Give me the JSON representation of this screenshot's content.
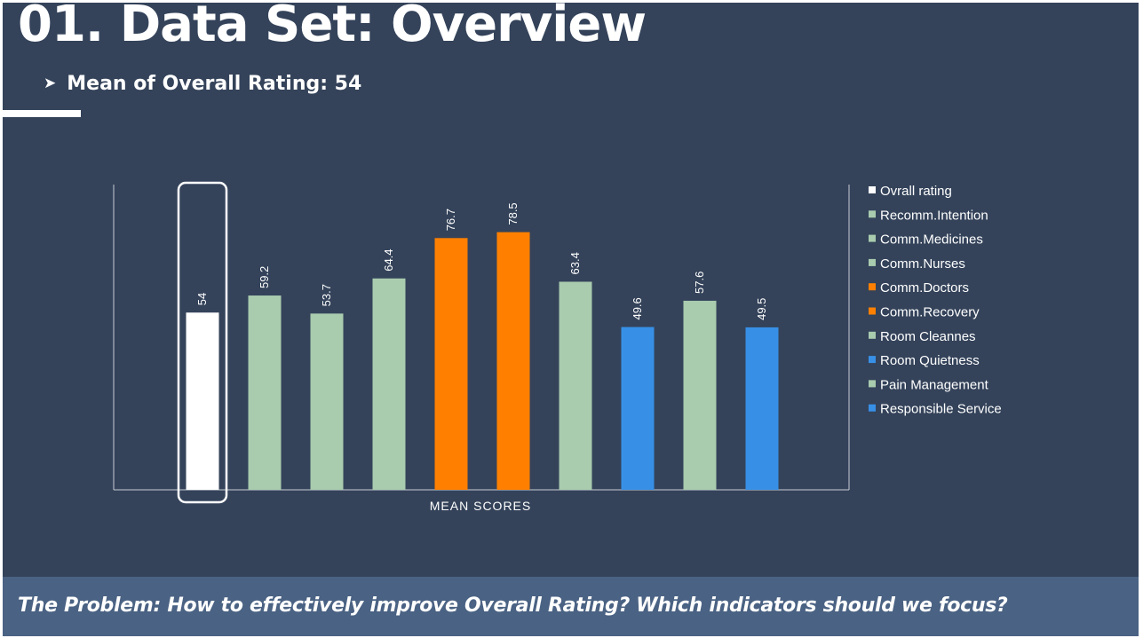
{
  "slide": {
    "title": "01. Data Set: Overview",
    "subtitle": "Mean of Overall Rating: 54",
    "footer": "The Problem: How to effectively improve Overall Rating? Which indicators should we focus?"
  },
  "colors": {
    "background": "#34435a",
    "footer_background": "#4a6283",
    "white": "#ffffff",
    "green": "#a9cbae",
    "orange": "#ff8000",
    "blue": "#3890e6"
  },
  "chart_data": {
    "type": "bar",
    "title": "",
    "xlabel": "MEAN SCORES",
    "ylabel": "",
    "ylim": [
      0,
      93
    ],
    "grid": false,
    "legend_position": "right",
    "highlighted_category": "Ovrall rating",
    "categories": [
      "Ovrall rating",
      "Recomm.Intention",
      "Comm.Medicines",
      "Comm.Nurses",
      "Comm.Doctors",
      "Comm.Recovery",
      "Room Cleannes",
      "Room Quietness",
      "Pain Management",
      "Responsible Service"
    ],
    "values": [
      54,
      59.2,
      53.7,
      64.4,
      76.7,
      78.5,
      63.4,
      49.6,
      57.6,
      49.5
    ],
    "value_labels": [
      "54",
      "59.2",
      "53.7",
      "64.4",
      "76.7",
      "78.5",
      "63.4",
      "49.6",
      "57.6",
      "49.5"
    ],
    "bar_colors": [
      "#ffffff",
      "#a9cbae",
      "#a9cbae",
      "#a9cbae",
      "#ff8000",
      "#ff8000",
      "#a9cbae",
      "#3890e6",
      "#a9cbae",
      "#3890e6"
    ]
  }
}
